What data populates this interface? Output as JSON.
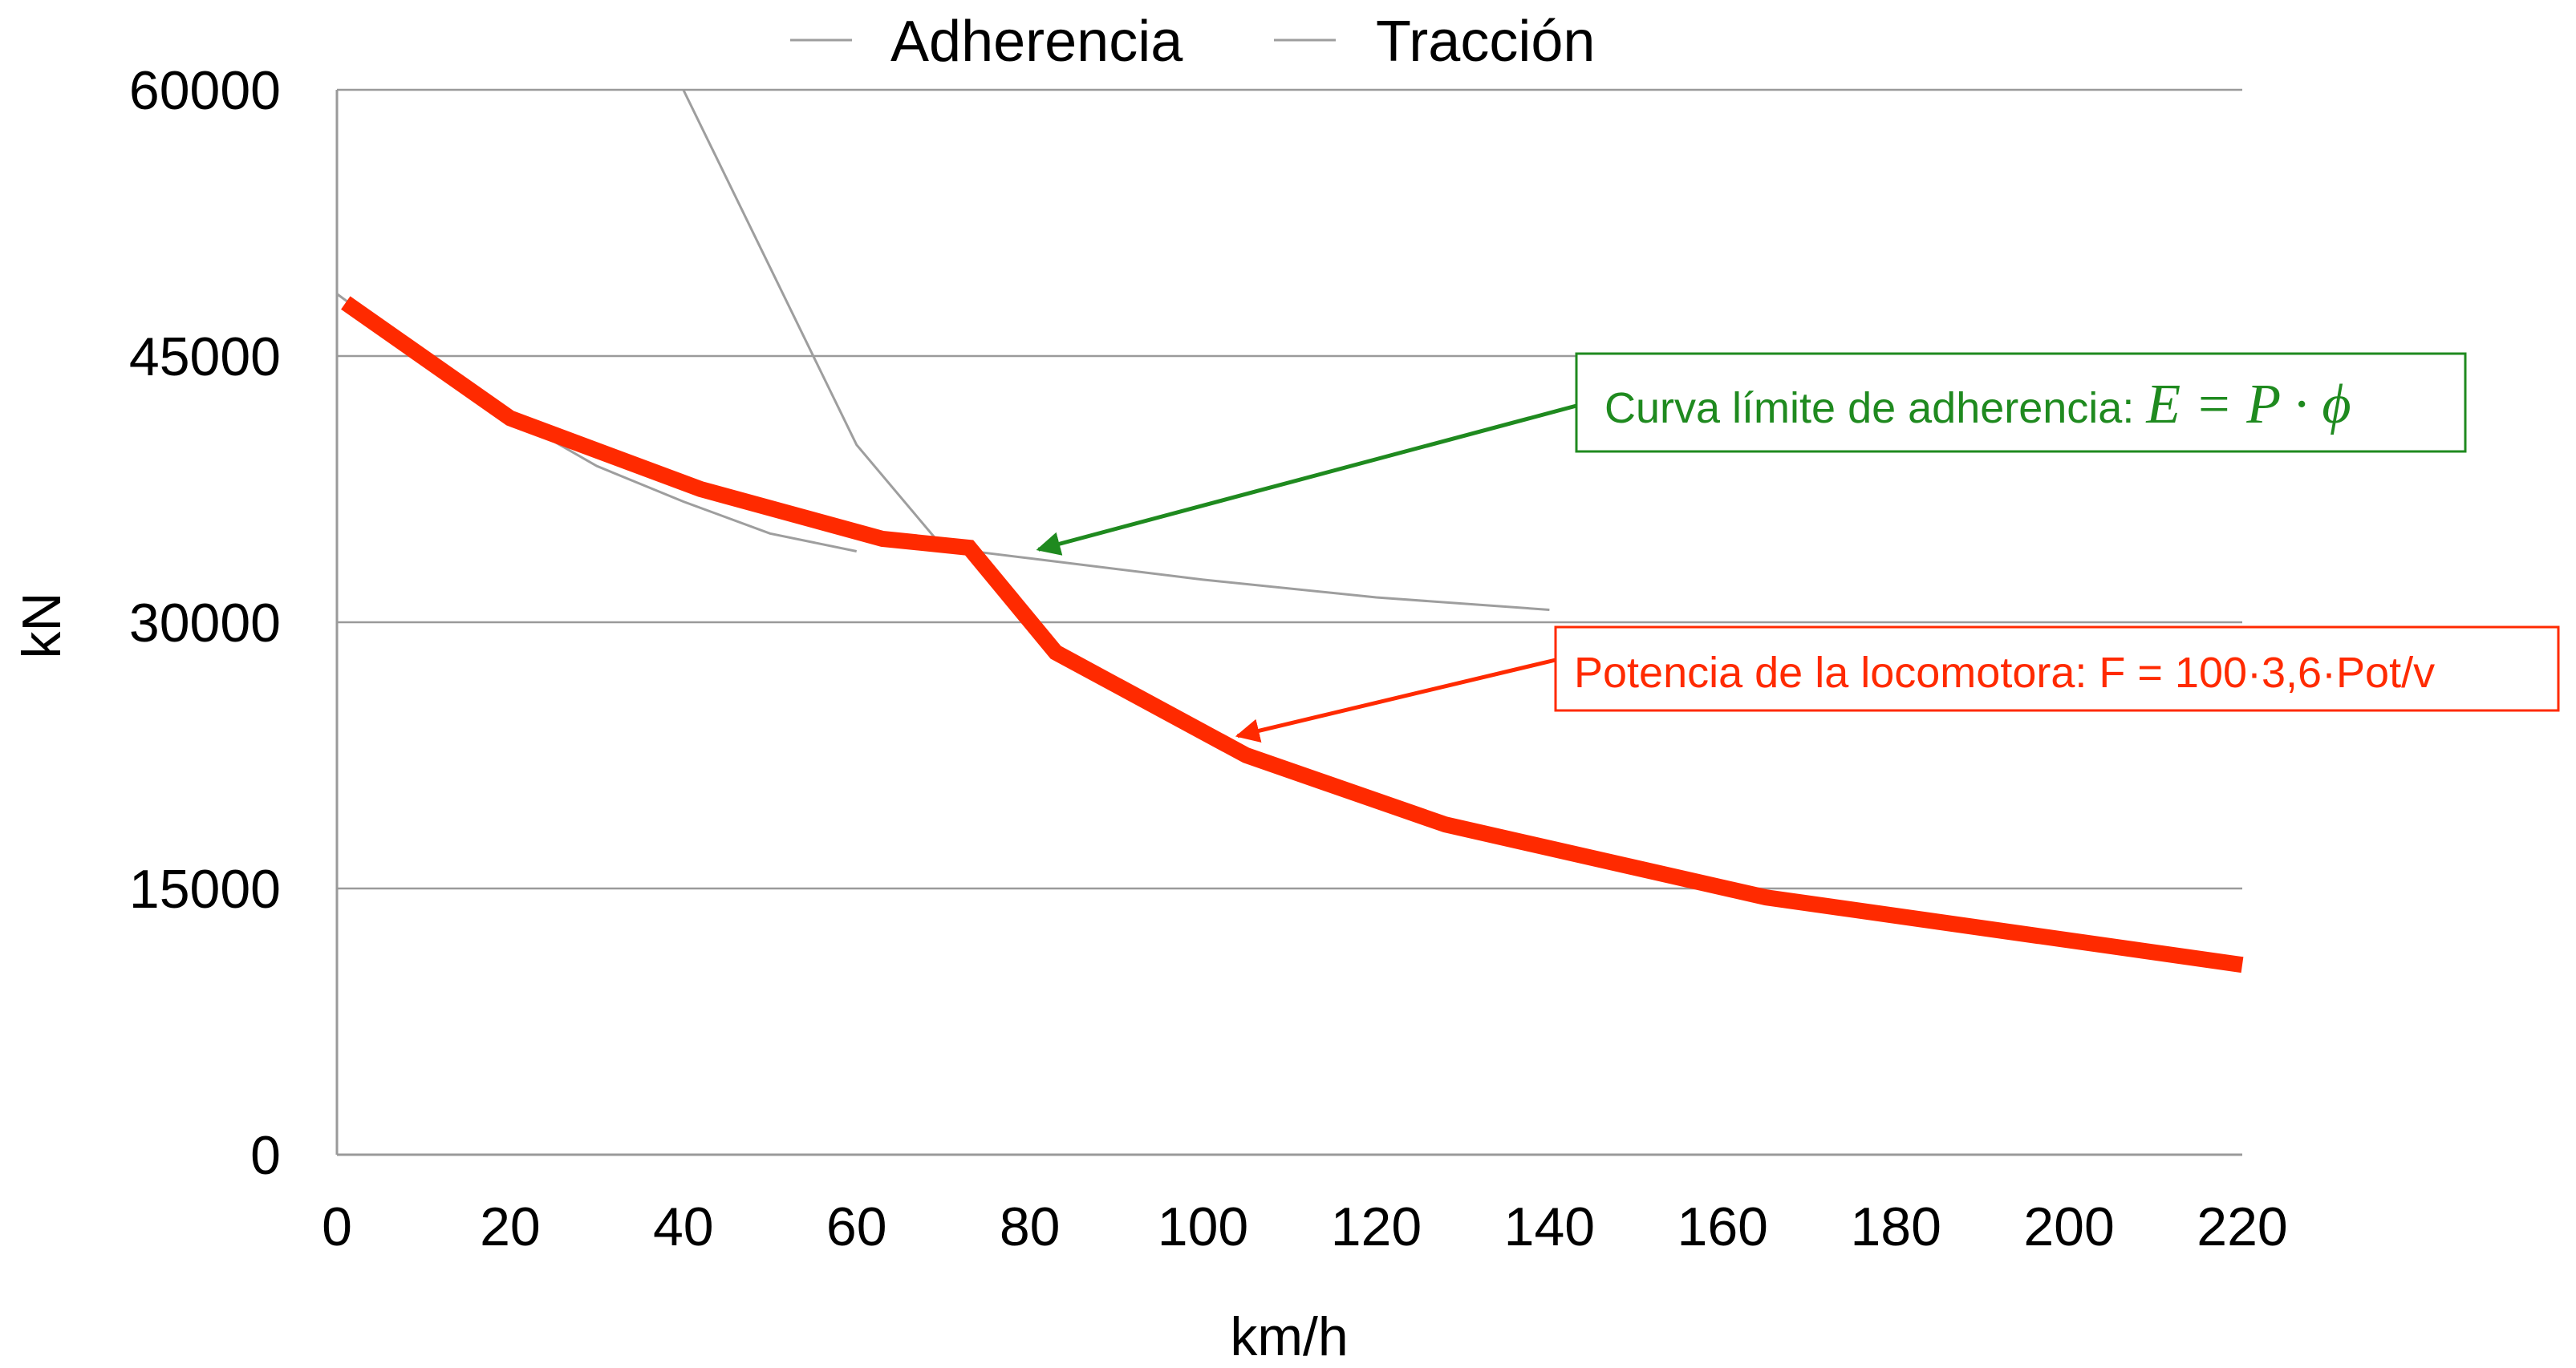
{
  "chart_data": {
    "type": "line",
    "title": "",
    "xlabel": "km/h",
    "ylabel": "kN",
    "xlim": [
      0,
      220
    ],
    "ylim": [
      0,
      60000
    ],
    "xticks": [
      "0",
      "20",
      "40",
      "60",
      "80",
      "100",
      "120",
      "140",
      "160",
      "180",
      "200",
      "220"
    ],
    "yticks": [
      "0",
      "15000",
      "30000",
      "45000",
      "60000"
    ],
    "xtick_values": [
      0,
      20,
      40,
      60,
      80,
      100,
      120,
      140,
      160,
      180,
      200,
      220
    ],
    "ytick_values": [
      0,
      15000,
      30000,
      45000,
      60000
    ],
    "grid": "horizontal",
    "legend_position": "top-center",
    "series": [
      {
        "name": "Adherencia",
        "color": "#9e9e9e",
        "style": "thin",
        "x": [
          0,
          5,
          10,
          20,
          30,
          40,
          50,
          60
        ],
        "y": [
          48500,
          46700,
          45000,
          41600,
          38800,
          36800,
          35000,
          34000
        ]
      },
      {
        "name": "Tracción",
        "color": "#9e9e9e",
        "style": "thin",
        "x": [
          40,
          50,
          60,
          70,
          80,
          100,
          120,
          140
        ],
        "y": [
          60000,
          50000,
          40000,
          34200,
          33600,
          32400,
          31400,
          30700
        ]
      },
      {
        "name": "Potencia de la locomotora",
        "color": "#ff2a00",
        "style": "thick",
        "x": [
          1,
          20,
          42,
          63,
          73,
          83,
          105,
          128,
          165,
          220
        ],
        "y": [
          48000,
          41500,
          37500,
          34700,
          34200,
          28300,
          22500,
          18600,
          14500,
          10700
        ]
      }
    ],
    "annotations": [
      {
        "id": "adherencia",
        "text": "Curva límite de adherencia: ",
        "math": "E = P · ϕ",
        "color": "#1f8a1f",
        "points_to": {
          "x": 81,
          "y": 34100
        }
      },
      {
        "id": "potencia",
        "text": "Potencia de la locomotora: F = 100·3,6·Pot/v",
        "math": "",
        "color": "#ff2a00",
        "points_to": {
          "x": 104,
          "y": 23600
        }
      }
    ]
  }
}
